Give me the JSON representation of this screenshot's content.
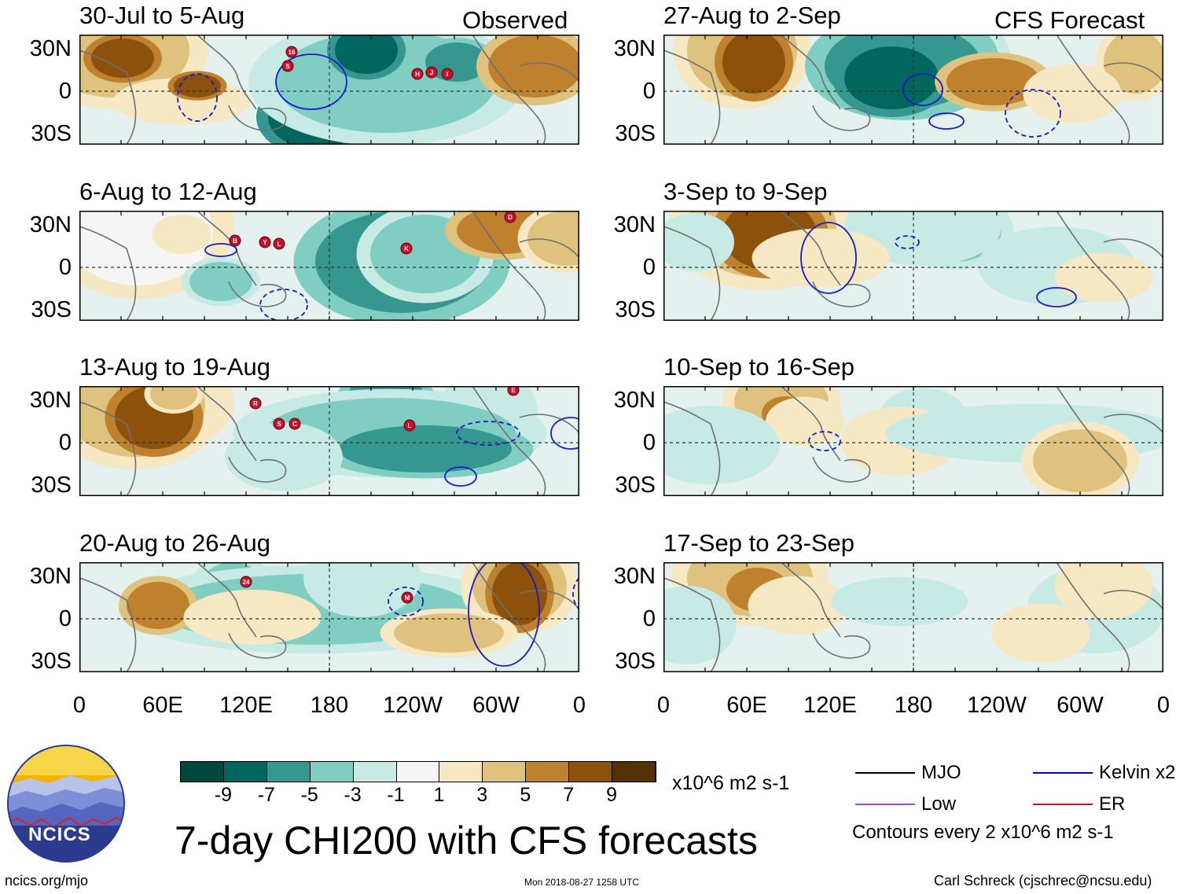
{
  "chart_data": {
    "type": "heatmap",
    "title": "7-day CHI200 with CFS forecasts",
    "variable": "CHI200",
    "units": "x10^6 m2 s-1",
    "x_tick_labels": [
      "0",
      "60E",
      "120E",
      "180",
      "120W",
      "60W",
      "0"
    ],
    "y_tick_labels": [
      "30N",
      "0",
      "30S"
    ],
    "xlim": [
      0,
      360
    ],
    "ylim": [
      -40,
      40
    ],
    "colorbar": {
      "labels": [
        "-9",
        "-7",
        "-5",
        "-3",
        "-1",
        "1",
        "3",
        "5",
        "7",
        "9"
      ],
      "colors": [
        "#00473e",
        "#01665e",
        "#35978f",
        "#80cdc1",
        "#c7eae5",
        "#f5f5f5",
        "#f6e8c3",
        "#dfc27d",
        "#bf812d",
        "#8c510a",
        "#543005"
      ]
    },
    "column_headers": {
      "observed": "Observed",
      "forecast": "CFS Forecast"
    },
    "panels": [
      {
        "title": "30-Jul to 5-Aug",
        "column": "Observed",
        "storm_labels": [
          "16",
          "S",
          "H",
          "J",
          "I"
        ]
      },
      {
        "title": "6-Aug to 12-Aug",
        "column": "Observed",
        "storm_labels": [
          "B",
          "Y",
          "L",
          "K",
          "D"
        ]
      },
      {
        "title": "13-Aug to 19-Aug",
        "column": "Observed",
        "storm_labels": [
          "R",
          "S",
          "C",
          "L",
          "E"
        ]
      },
      {
        "title": "20-Aug to 26-Aug",
        "column": "Observed",
        "storm_labels": [
          "24",
          "M"
        ]
      },
      {
        "title": "27-Aug to 2-Sep",
        "column": "CFS Forecast"
      },
      {
        "title": "3-Sep to 9-Sep",
        "column": "CFS Forecast"
      },
      {
        "title": "10-Sep to 16-Sep",
        "column": "CFS Forecast"
      },
      {
        "title": "17-Sep to 23-Sep",
        "column": "CFS Forecast"
      }
    ],
    "legend": [
      {
        "label": "MJO",
        "color": "#000000"
      },
      {
        "label": "Kelvin x2",
        "color": "#0000cc"
      },
      {
        "label": "Low",
        "color": "#9a4fd6"
      },
      {
        "label": "ER",
        "color": "#dd1111"
      }
    ],
    "contour_note": "Contours every 2 x10^6 m2 s-1"
  },
  "logo": {
    "text": "NCICS"
  },
  "footer": {
    "url": "ncics.org/mjo",
    "timestamp": "Mon 2018-08-27 1258 UTC",
    "author": "Carl Schreck (cjschrec@ncsu.edu)"
  }
}
